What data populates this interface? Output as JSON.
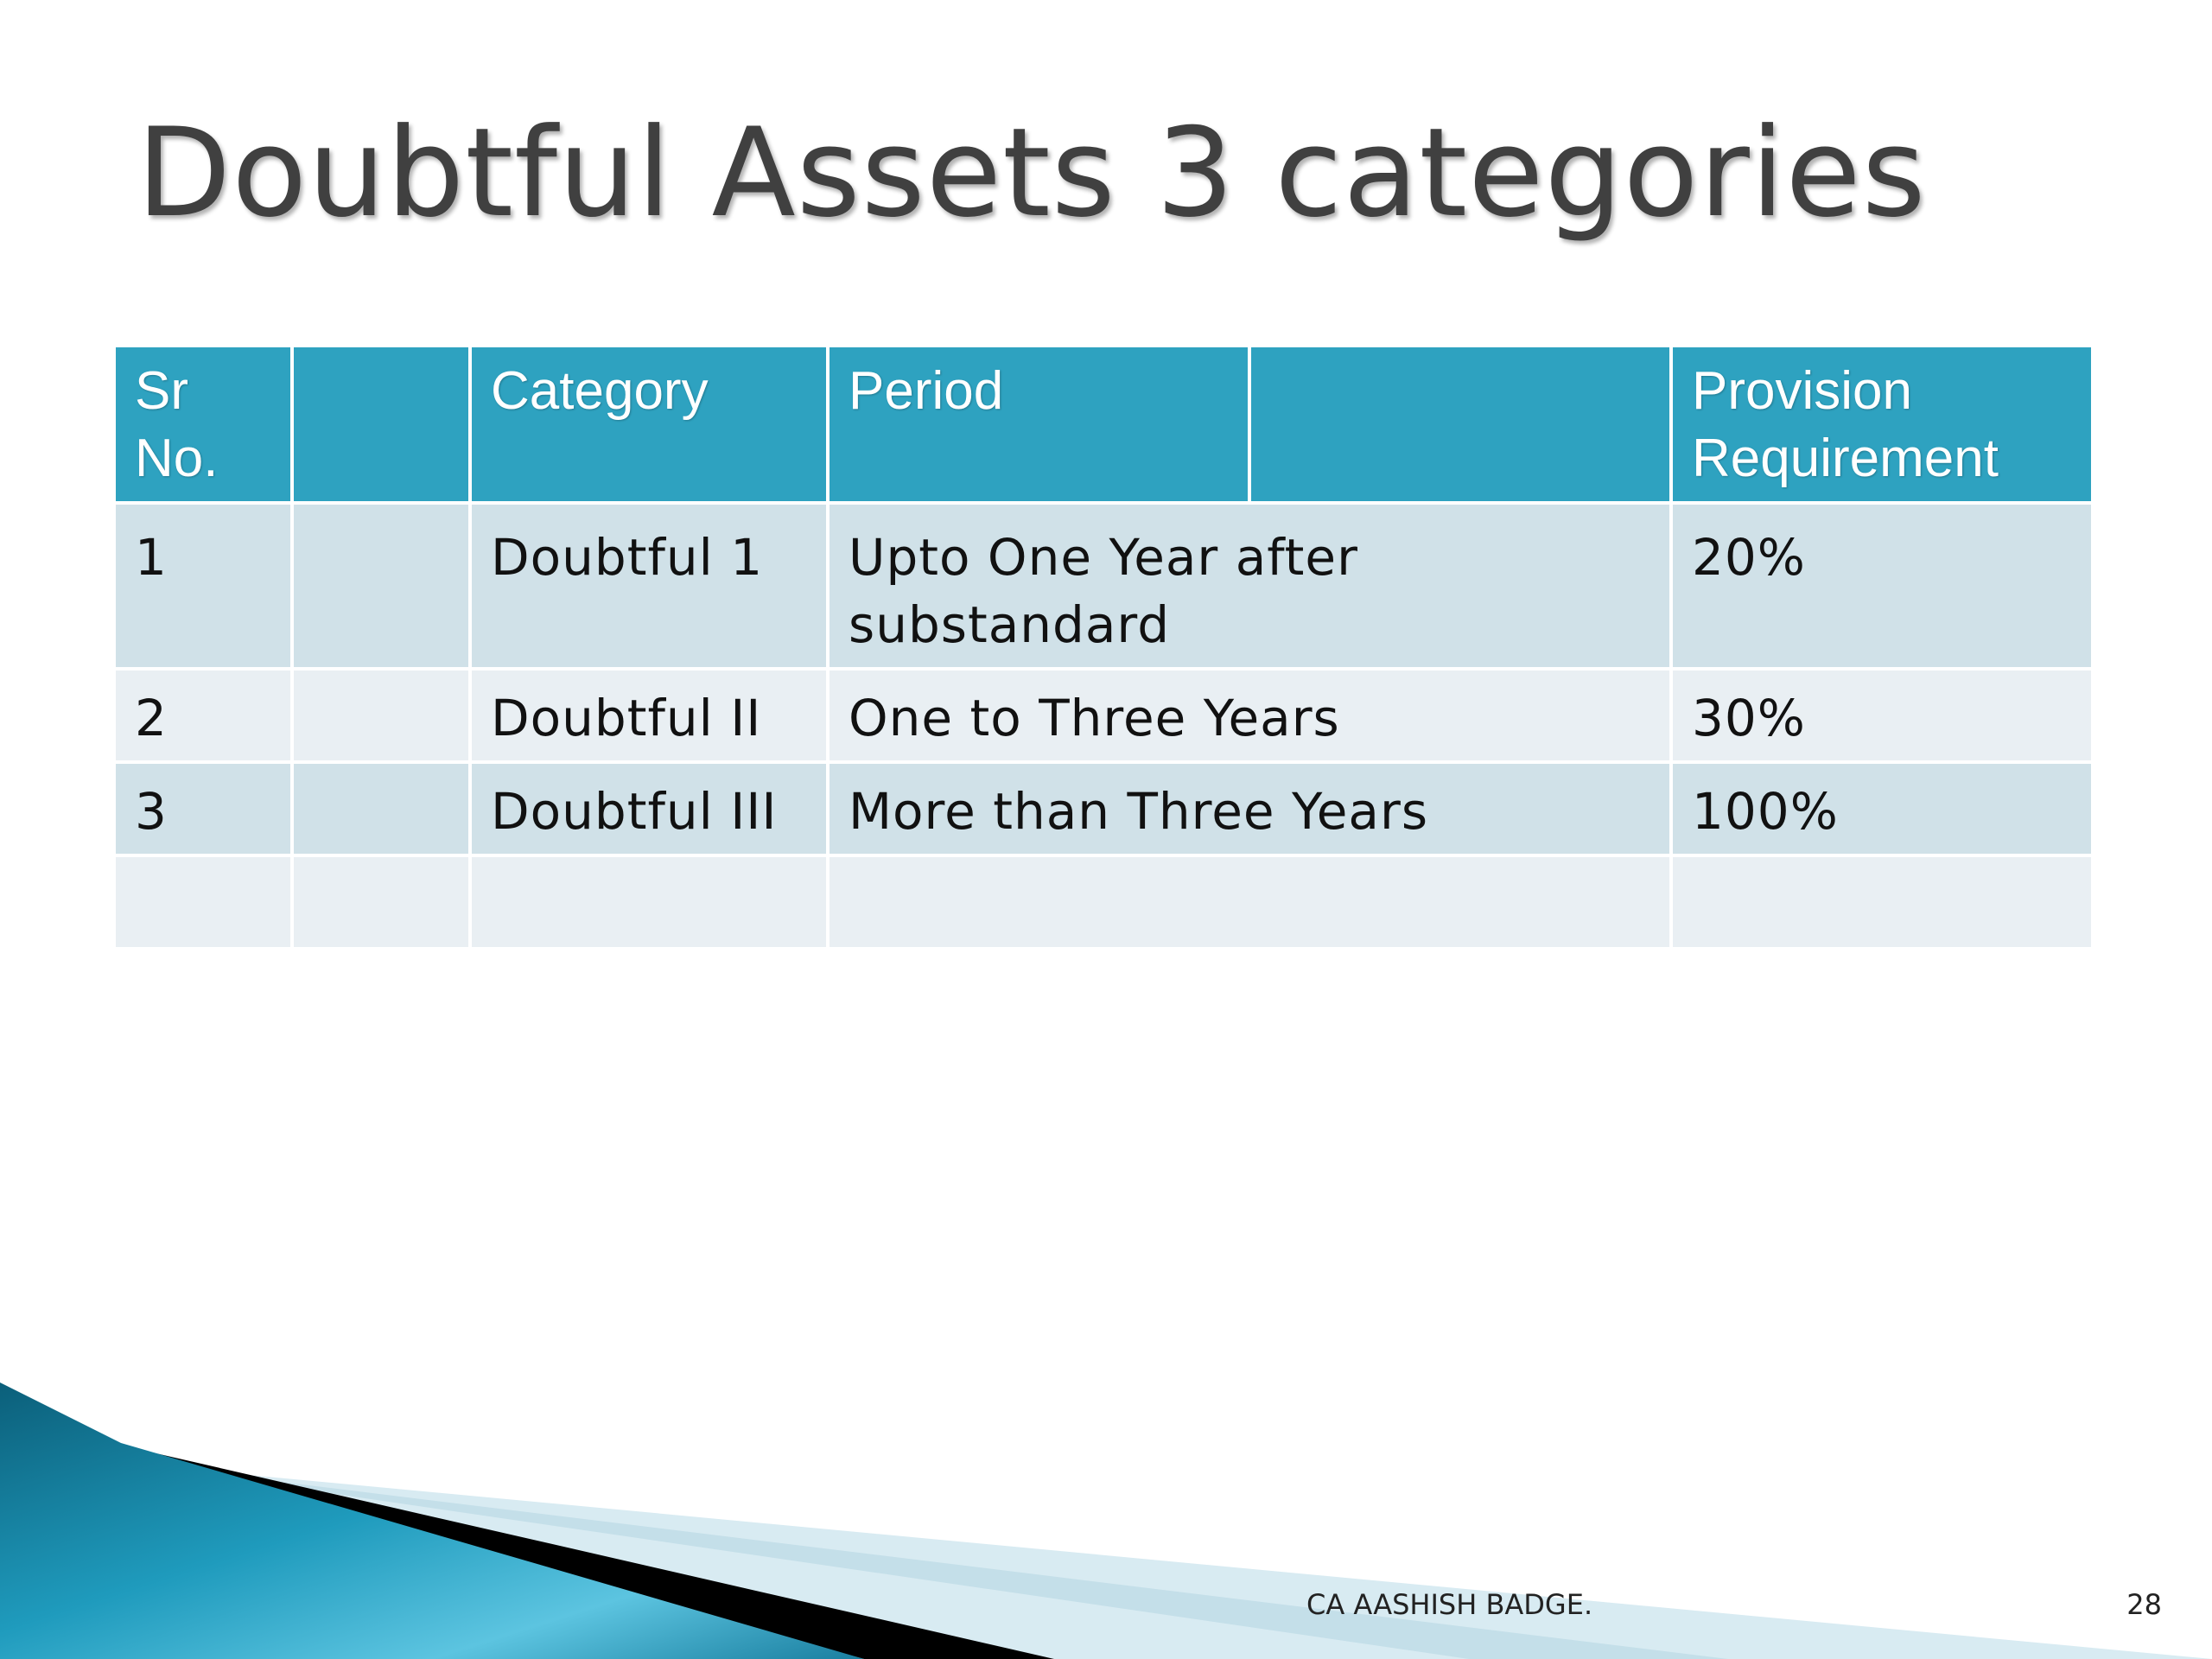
{
  "slide": {
    "title": "Doubtful Assets 3 categories",
    "footer": "CA AASHISH BADGE.",
    "page_number": "28"
  },
  "table": {
    "headers": [
      "Sr No.",
      "",
      "Category",
      "Period",
      "",
      "Provision Requirement"
    ],
    "rows": [
      {
        "sr": "1",
        "blank": "",
        "category": "Doubtful 1",
        "period": "Upto One Year after substandard",
        "provision": "20%"
      },
      {
        "sr": "2",
        "blank": "",
        "category": "Doubtful II",
        "period": "One to Three Years",
        "provision": "30%"
      },
      {
        "sr": "3",
        "blank": "",
        "category": "Doubtful III",
        "period": "More than Three Years",
        "provision": "100%"
      },
      {
        "sr": "",
        "blank": "",
        "category": "",
        "period": "",
        "provision": ""
      }
    ]
  },
  "colors": {
    "header_bg": "#2ea2c0",
    "row_dark": "#d0e1e8",
    "row_light": "#e9eff3",
    "title": "#404040",
    "swoosh_teal": "#1a8aa8"
  }
}
